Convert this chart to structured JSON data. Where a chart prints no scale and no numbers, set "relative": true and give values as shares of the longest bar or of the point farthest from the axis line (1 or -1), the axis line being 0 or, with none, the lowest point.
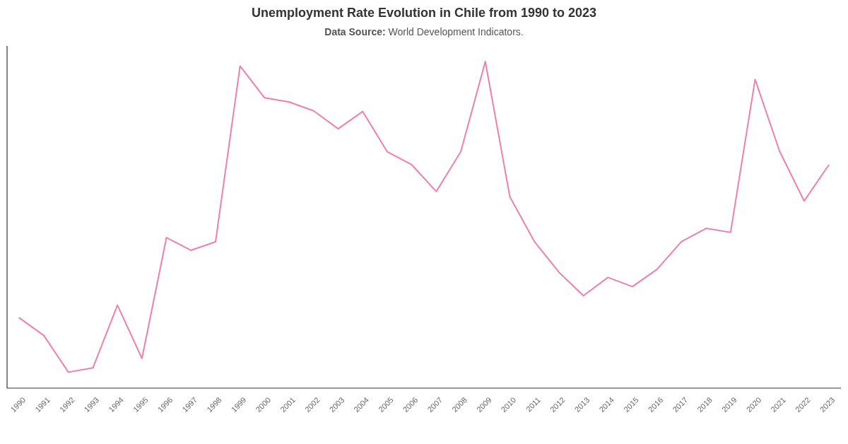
{
  "chart_data": {
    "type": "line",
    "title": "Unemployment Rate Evolution in Chile from 1990 to 2023",
    "subtitle": "Data Source: World Development Indicators.",
    "relative": true,
    "tick_labels": "x",
    "line_style": "solid",
    "categories": [
      "1990",
      "1991",
      "1992",
      "1993",
      "1994",
      "1995",
      "1996",
      "1997",
      "1998",
      "1999",
      "2000",
      "2001",
      "2002",
      "2003",
      "2004",
      "2005",
      "2006",
      "2007",
      "2008",
      "2009",
      "2010",
      "2011",
      "2012",
      "2013",
      "2014",
      "2015",
      "2016",
      "2017",
      "2018",
      "2019",
      "2020",
      "2021",
      "2022",
      "2023"
    ],
    "series": [
      {
        "color": "#f07fab",
        "values": [
          0.215,
          0.161,
          0.049,
          0.062,
          0.254,
          0.091,
          0.461,
          0.422,
          0.448,
          0.986,
          0.889,
          0.876,
          0.849,
          0.794,
          0.847,
          0.724,
          0.684,
          0.602,
          0.724,
          1,
          0.586,
          0.449,
          0.355,
          0.283,
          0.339,
          0.311,
          0.364,
          0.449,
          0.489,
          0.477,
          0.945,
          0.725,
          0.573,
          0.683
        ]
      }
    ]
  }
}
